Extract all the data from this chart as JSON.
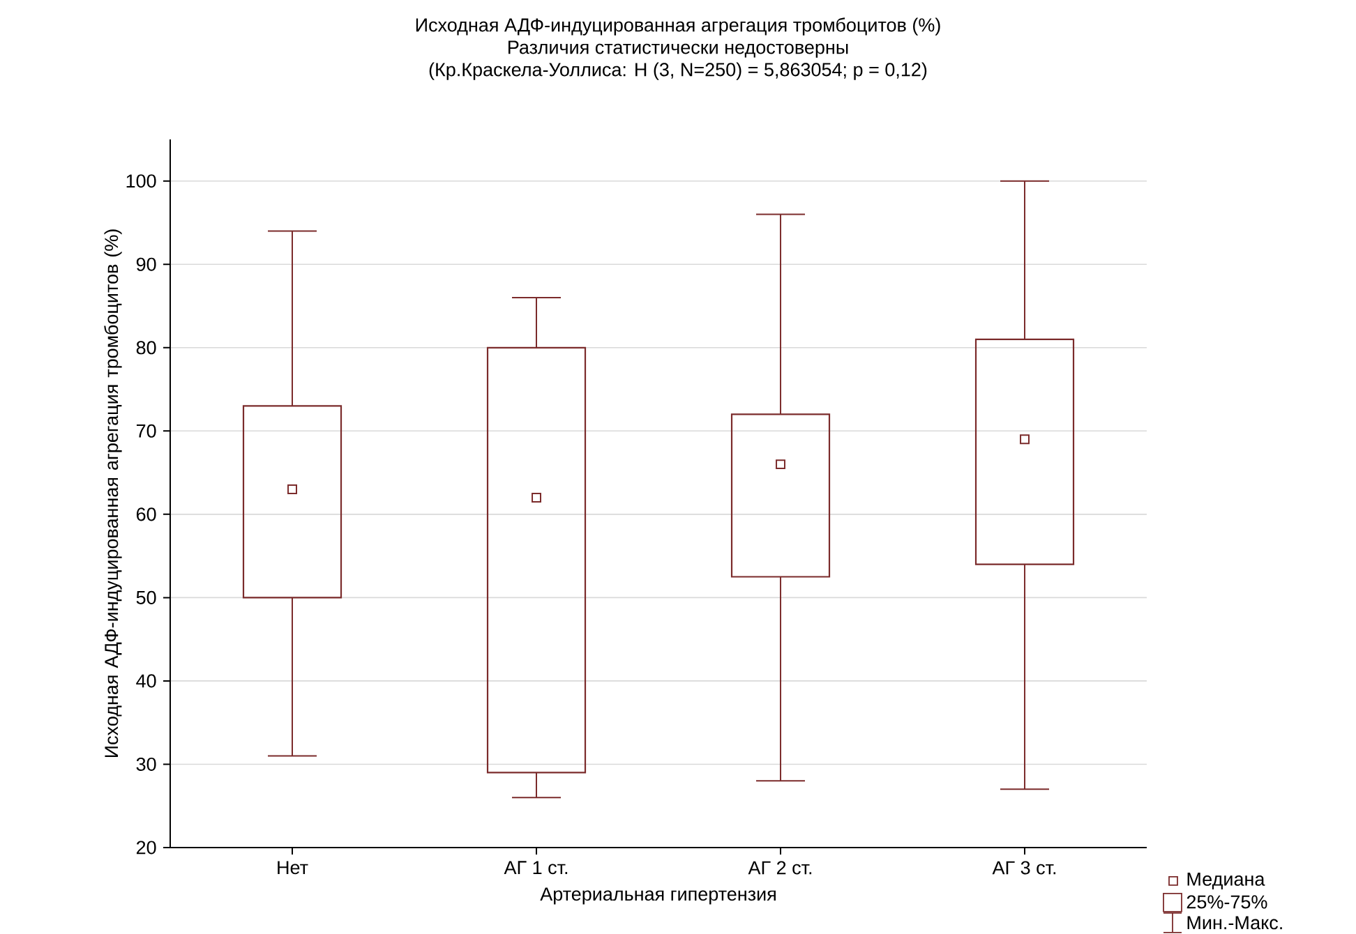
{
  "chart_data": {
    "type": "box",
    "title": "Исходная АДФ-индуцированная агрегация тромбоцитов (%)",
    "subtitle": "Различия статистически недостоверны",
    "xlabel": "Артериальная гипертензия",
    "ylabel": "Исходная АДФ-индуцированная агрегация тромбоцитов (%)",
    "categories": [
      "Нет",
      "АГ 1 ст.",
      "АГ 2 ст.",
      "АГ 3 ст."
    ],
    "series": [
      {
        "color": "#7b2b2b",
        "boxes": [
          {
            "low": 31,
            "q1": 50,
            "median": 63,
            "q3": 73,
            "high": 94
          },
          {
            "low": 26,
            "q1": 29,
            "median": 62,
            "q3": 80,
            "high": 86
          },
          {
            "low": 28,
            "q1": 52.5,
            "median": 66,
            "q3": 72,
            "high": 96
          },
          {
            "low": 27,
            "q1": 54,
            "median": 69,
            "q3": 81,
            "high": 100
          }
        ]
      }
    ],
    "ylim": [
      20,
      105
    ],
    "yticks": [
      20,
      30,
      40,
      50,
      60,
      70,
      80,
      90,
      100
    ],
    "grid": "y",
    "annotations": [
      "(Кр.Краскела-Уоллиса: H (3, N=250) = 5,863054; p = 0,12)",
      "Медиана",
      "25%-75%",
      "Мин.-Макс."
    ]
  }
}
